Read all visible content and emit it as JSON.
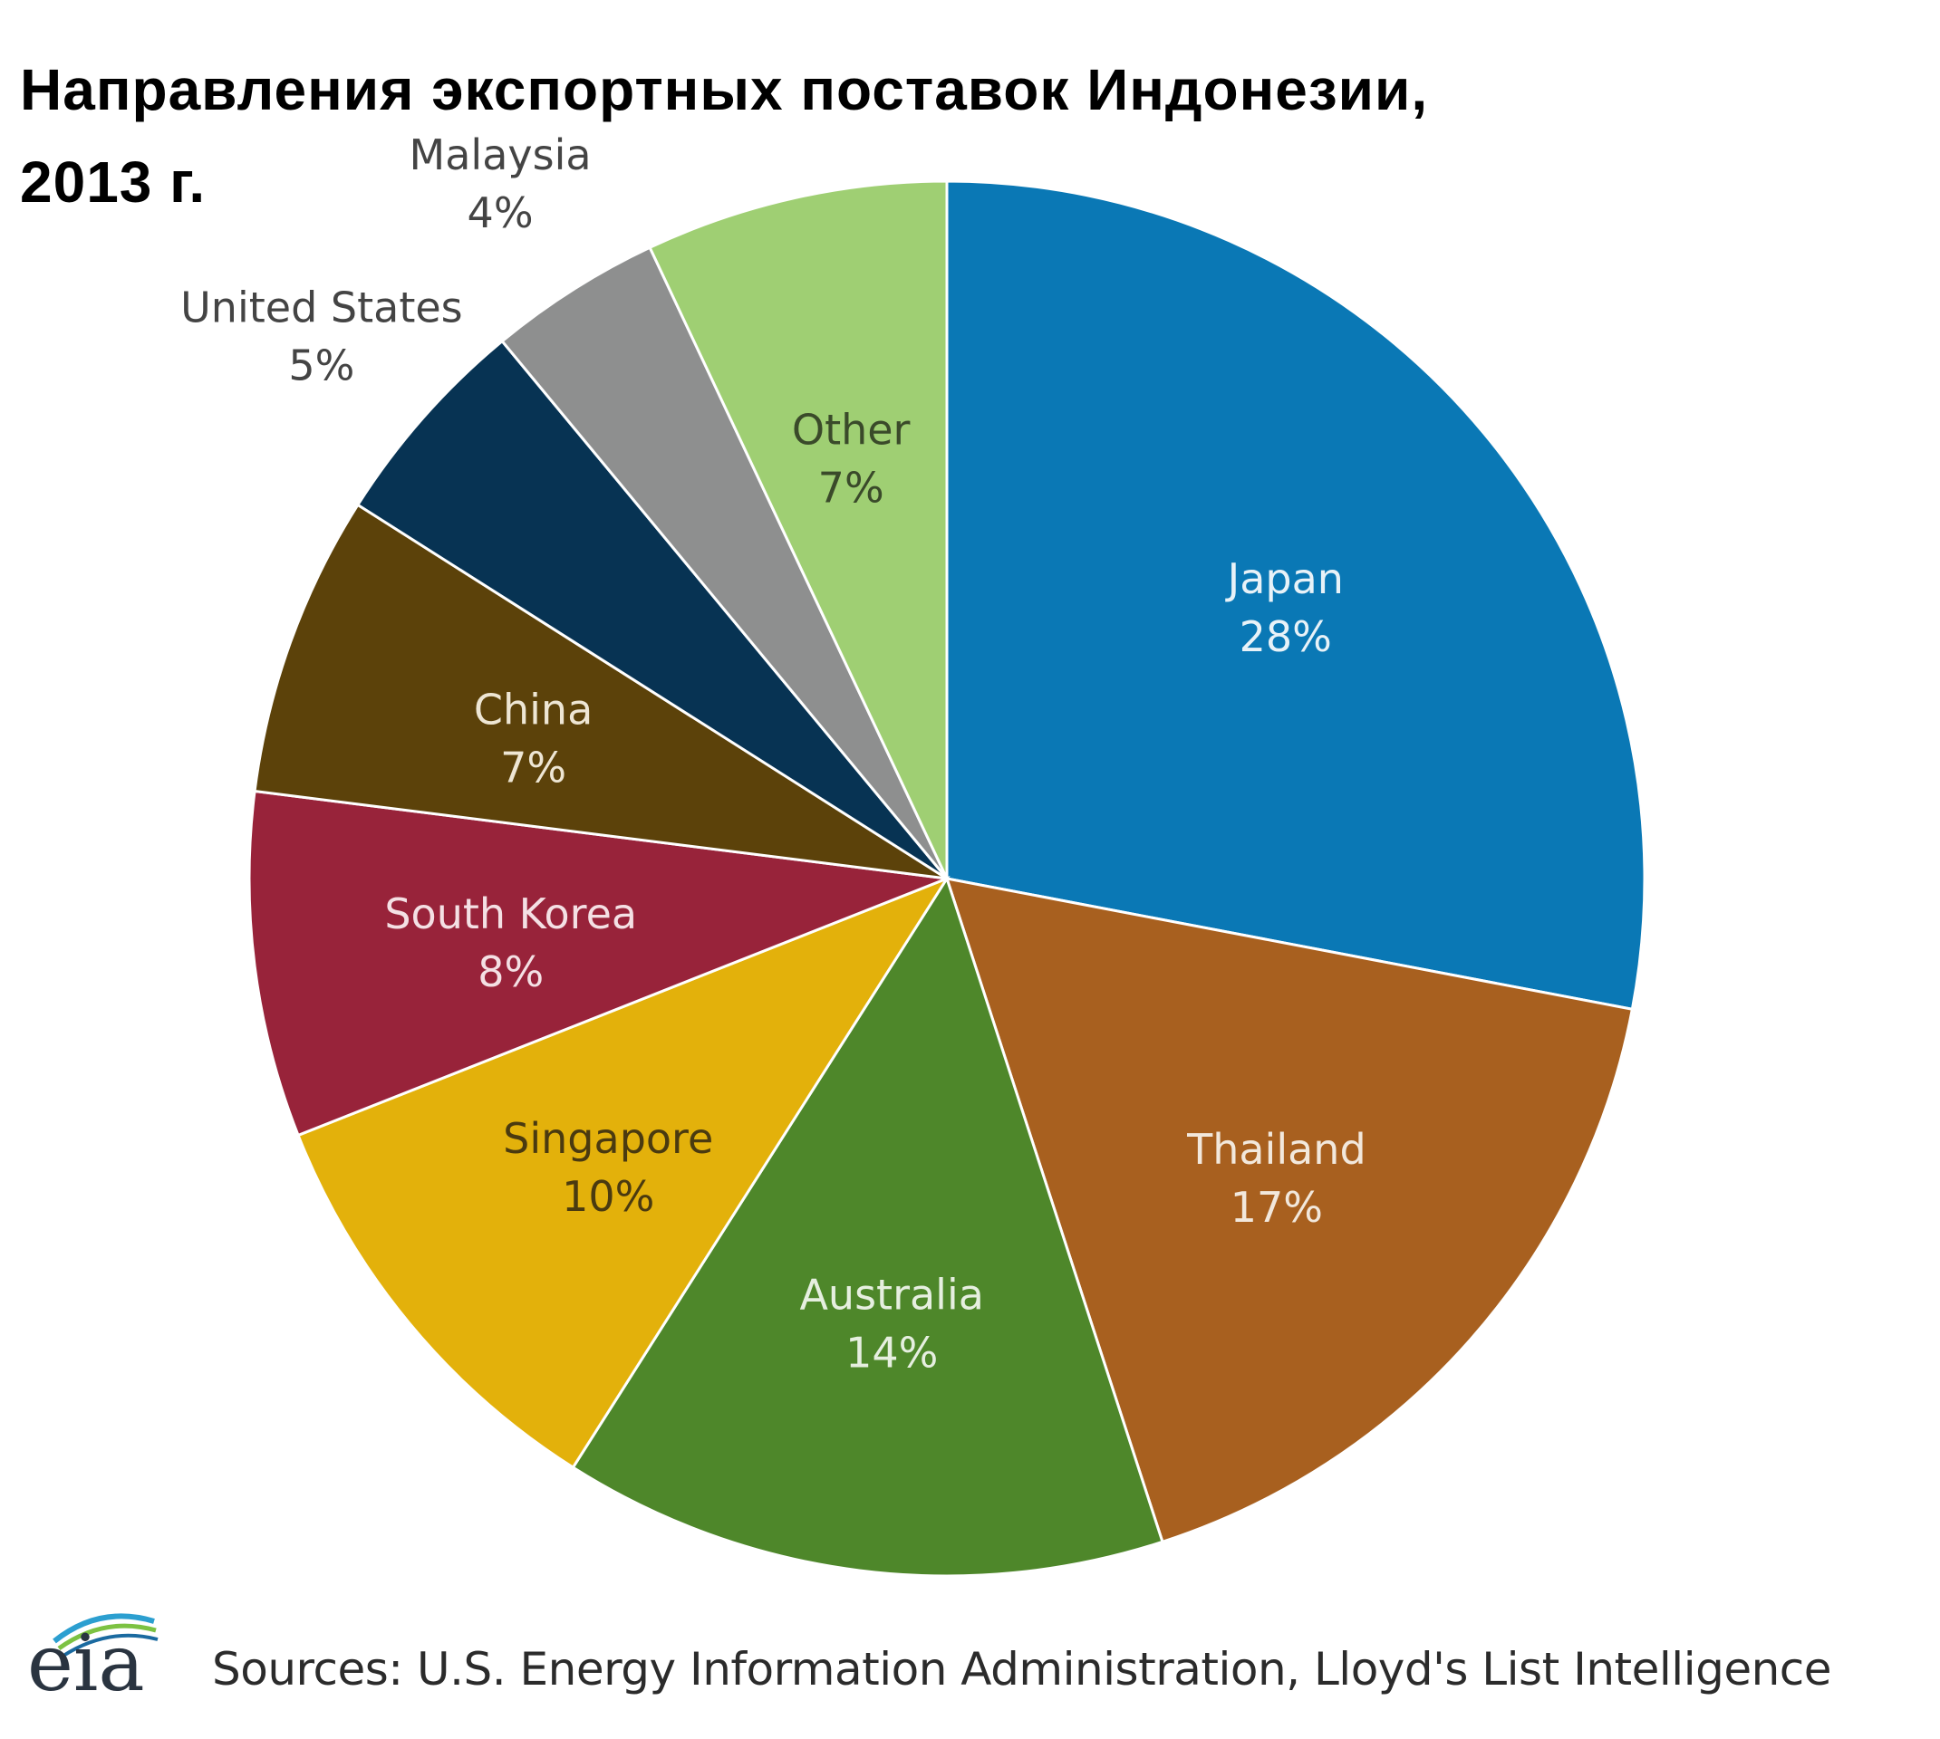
{
  "title_line1": "Направления экспортных поставок Индонезии,",
  "title_line2": "2013 г.",
  "chart_data": {
    "type": "pie",
    "title": "Направления экспортных поставок Индонезии, 2013 г.",
    "start_angle_deg": 0,
    "direction": "clockwise",
    "slices": [
      {
        "label": "Japan",
        "value": 28,
        "value_label": "28%",
        "color": "#0a78b5",
        "text_color": "#e8f2f8",
        "label_position": "inside"
      },
      {
        "label": "Thailand",
        "value": 17,
        "value_label": "17%",
        "color": "#a8601f",
        "text_color": "#f2e8dc",
        "label_position": "inside"
      },
      {
        "label": "Australia",
        "value": 14,
        "value_label": "14%",
        "color": "#4e872a",
        "text_color": "#e6efe0",
        "label_position": "inside"
      },
      {
        "label": "Singapore",
        "value": 10,
        "value_label": "10%",
        "color": "#e3b10b",
        "text_color": "#4a3a10",
        "label_position": "inside"
      },
      {
        "label": "South Korea",
        "value": 8,
        "value_label": "8%",
        "color": "#98233a",
        "text_color": "#f4e0e4",
        "label_position": "inside"
      },
      {
        "label": "China",
        "value": 7,
        "value_label": "7%",
        "color": "#5c420a",
        "text_color": "#eee6d4",
        "label_position": "inside"
      },
      {
        "label": "United States",
        "value": 5,
        "value_label": "5%",
        "color": "#073353",
        "text_color": "#444444",
        "label_position": "outside"
      },
      {
        "label": "Malaysia",
        "value": 4,
        "value_label": "4%",
        "color": "#8e8f8f",
        "text_color": "#444444",
        "label_position": "outside"
      },
      {
        "label": "Other",
        "value": 7,
        "value_label": "7%",
        "color": "#9fcf73",
        "text_color": "#3a4a2a",
        "label_position": "inside"
      }
    ]
  },
  "footer": {
    "logo_text": "eia",
    "source_text": "Sources: U.S. Energy Information Administration, Lloyd's List Intelligence"
  }
}
